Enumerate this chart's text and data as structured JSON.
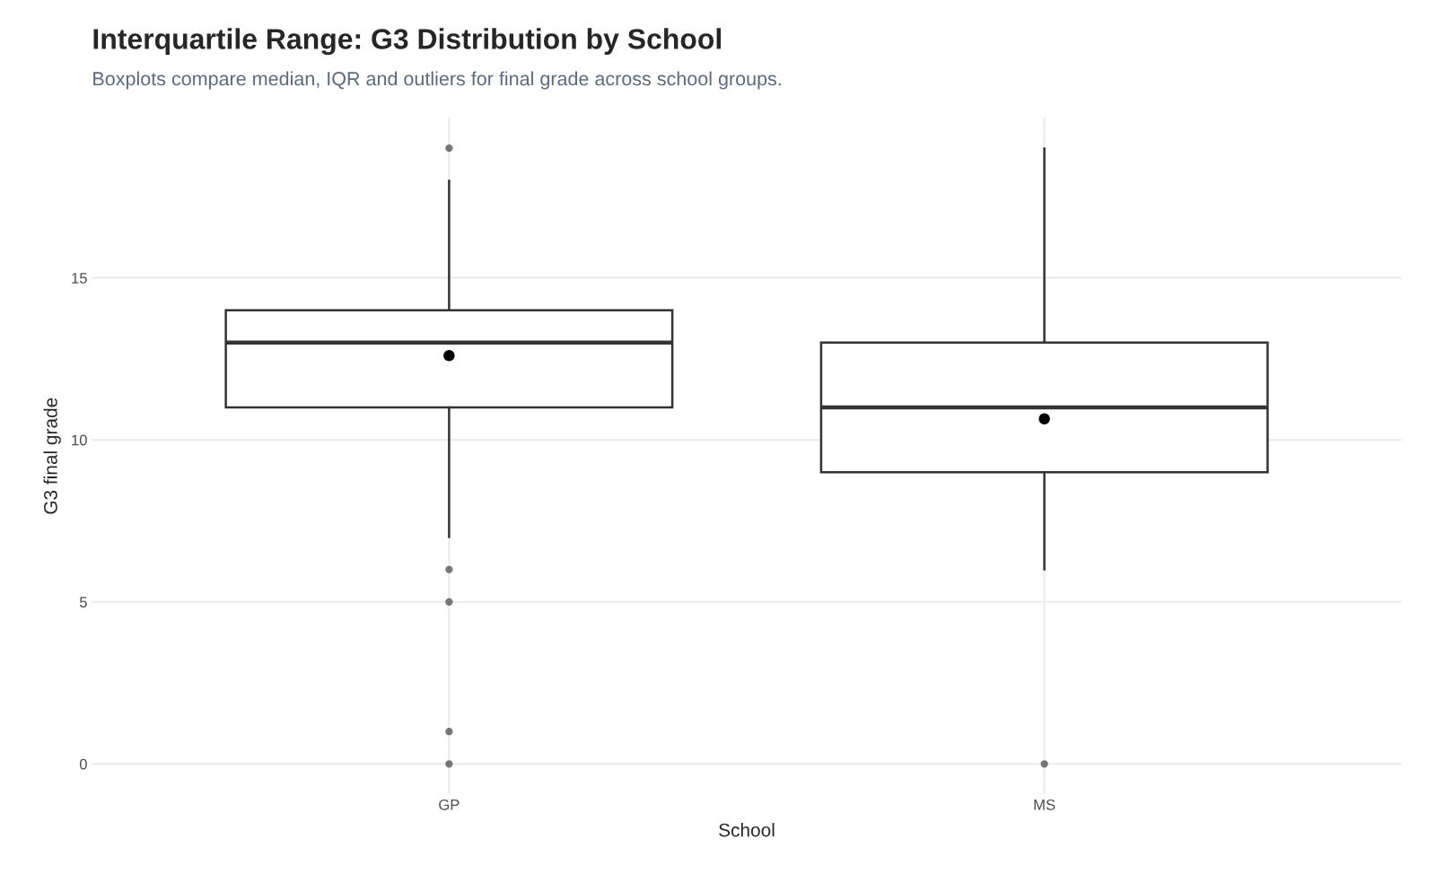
{
  "chart_data": {
    "type": "box",
    "title": "Interquartile Range: G3 Distribution by School",
    "subtitle": "Boxplots compare median, IQR and outliers for final grade across school groups.",
    "xlabel": "School",
    "ylabel": "G3 final grade",
    "categories": [
      "GP",
      "MS"
    ],
    "boxes": [
      {
        "low": 7,
        "q1": 11,
        "median": 13,
        "q3": 14,
        "high": 18,
        "mean": 12.6,
        "outliers": [
          19,
          6,
          5,
          1,
          0
        ]
      },
      {
        "low": 6,
        "q1": 9,
        "median": 11,
        "q3": 13,
        "high": 19,
        "mean": 10.65,
        "outliers": [
          0
        ]
      }
    ],
    "ylim": [
      -0.95,
      19.95
    ],
    "yticks": [
      0,
      5,
      10,
      15
    ],
    "grid": true
  }
}
